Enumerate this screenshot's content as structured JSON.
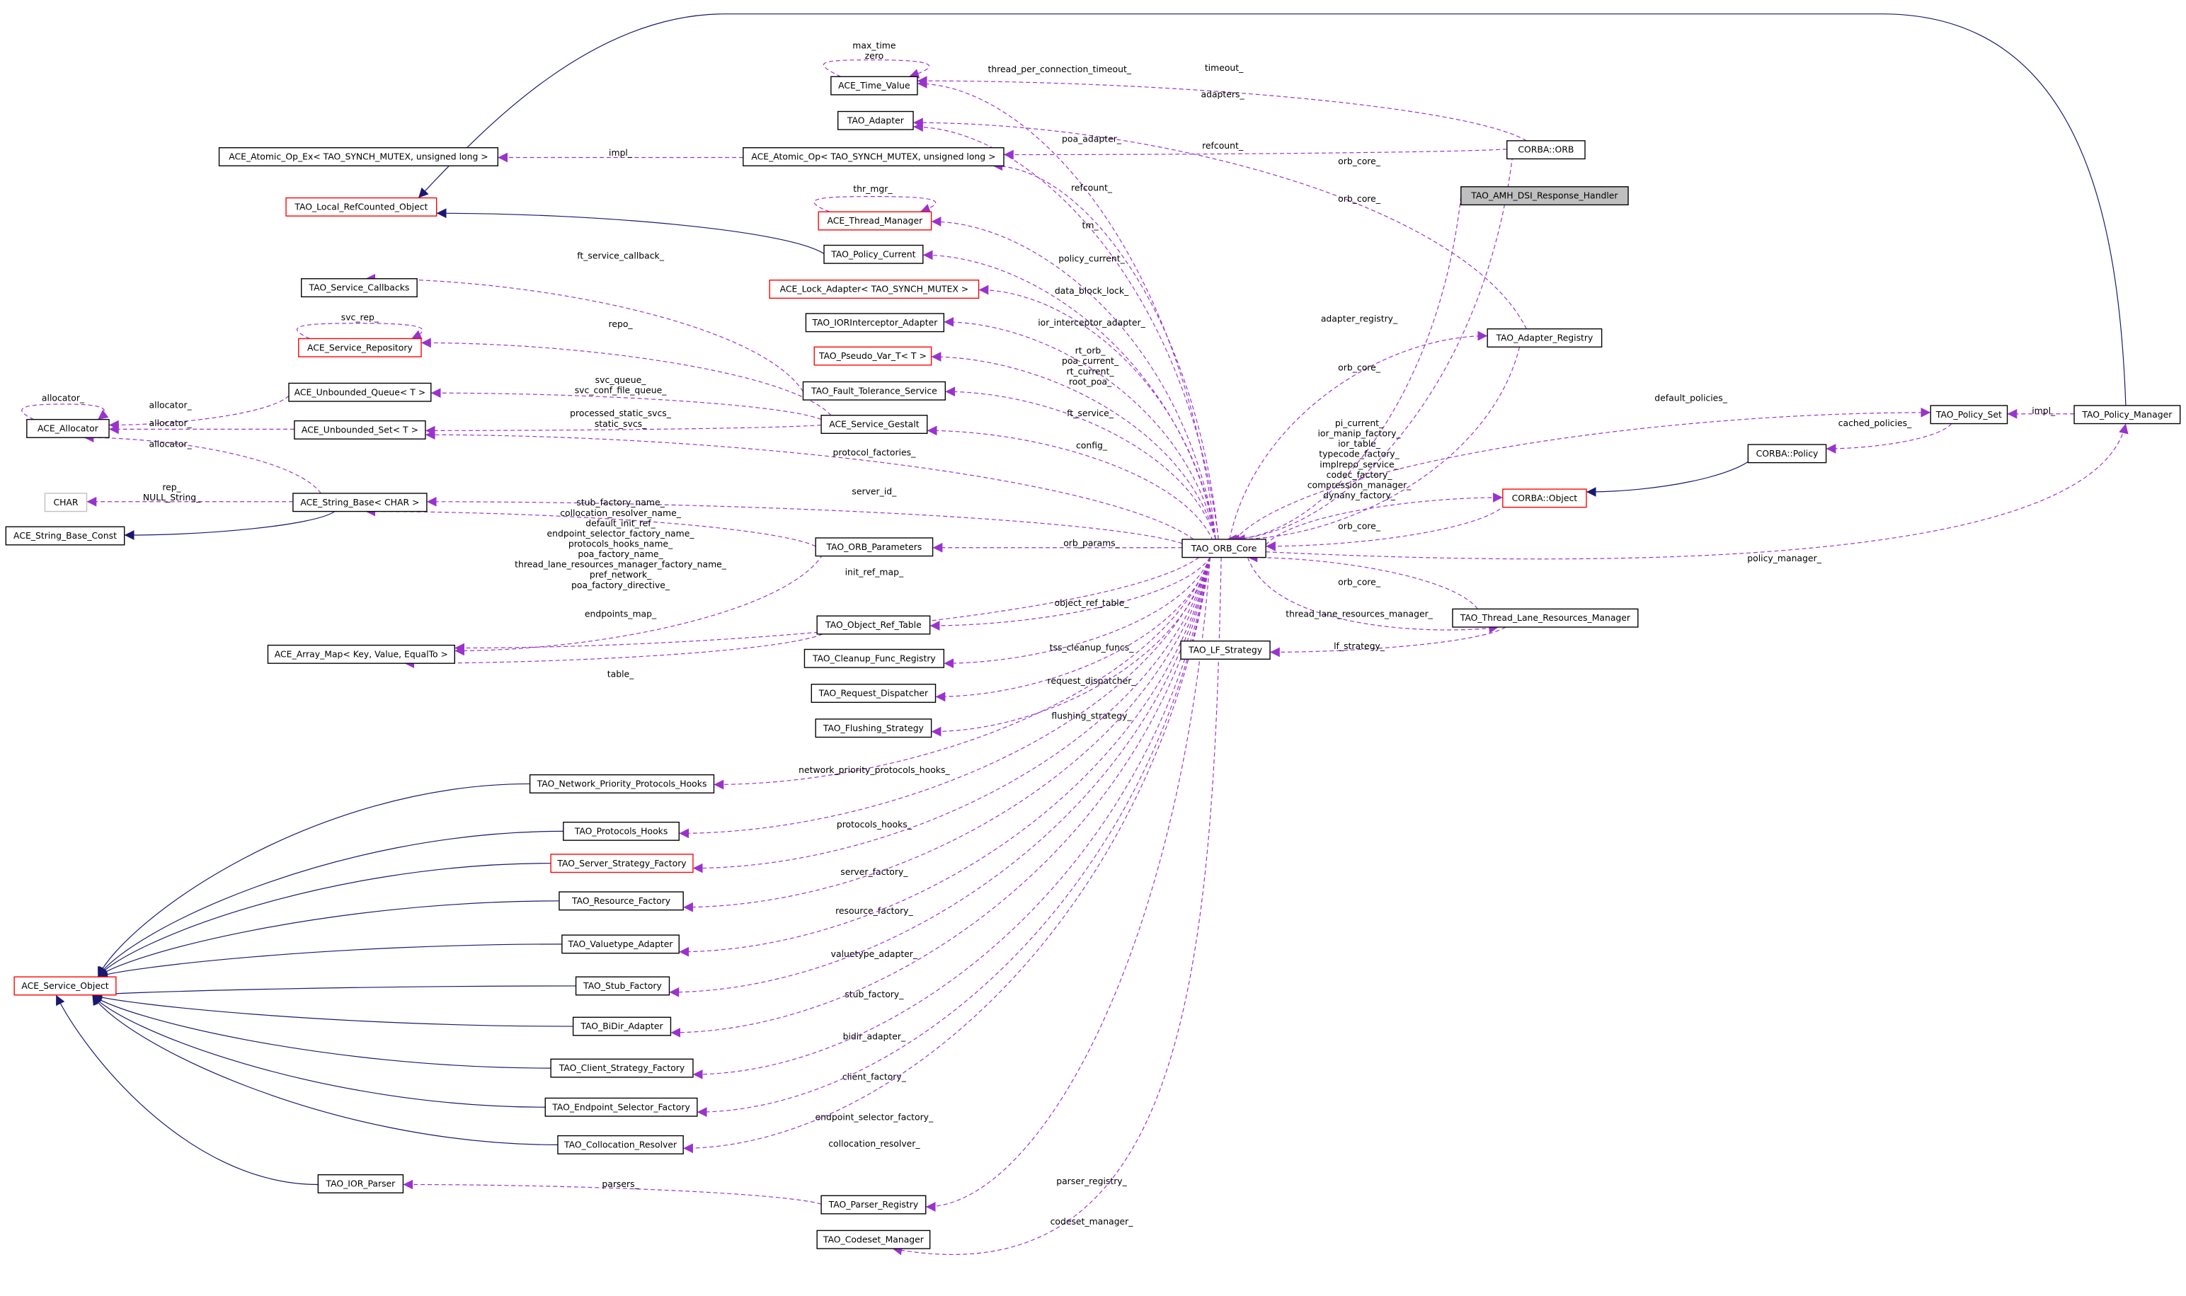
{
  "nodes": [
    {
      "label": "ACE_Time_Value"
    },
    {
      "label": "TAO_Adapter"
    },
    {
      "label": "ACE_Atomic_Op_Ex< TAO_SYNCH_MUTEX, unsigned long >"
    },
    {
      "label": "ACE_Atomic_Op< TAO_SYNCH_MUTEX, unsigned long >"
    },
    {
      "label": "CORBA::ORB"
    },
    {
      "label": "TAO_AMH_DSI_Response_Handler"
    },
    {
      "label": "TAO_Local_RefCounted_Object"
    },
    {
      "label": "ACE_Thread_Manager"
    },
    {
      "label": "TAO_Policy_Current"
    },
    {
      "label": "TAO_Service_Callbacks"
    },
    {
      "label": "ACE_Lock_Adapter< TAO_SYNCH_MUTEX >"
    },
    {
      "label": "TAO_IORInterceptor_Adapter"
    },
    {
      "label": "ACE_Service_Repository"
    },
    {
      "label": "TAO_Adapter_Registry"
    },
    {
      "label": "TAO_Pseudo_Var_T< T >"
    },
    {
      "label": "ACE_Unbounded_Queue< T >"
    },
    {
      "label": "TAO_Fault_Tolerance_Service"
    },
    {
      "label": "ACE_Allocator"
    },
    {
      "label": "ACE_Unbounded_Set< T >"
    },
    {
      "label": "ACE_Service_Gestalt"
    },
    {
      "label": "TAO_Policy_Set"
    },
    {
      "label": "TAO_Policy_Manager"
    },
    {
      "label": "CORBA::Policy"
    },
    {
      "label": "CHAR"
    },
    {
      "label": "ACE_String_Base< CHAR >"
    },
    {
      "label": "CORBA::Object"
    },
    {
      "label": "ACE_String_Base_Const"
    },
    {
      "label": "TAO_ORB_Parameters"
    },
    {
      "label": "TAO_ORB_Core"
    },
    {
      "label": "TAO_Object_Ref_Table"
    },
    {
      "label": "TAO_Thread_Lane_Resources_Manager"
    },
    {
      "label": "ACE_Array_Map< Key, Value, EqualTo >"
    },
    {
      "label": "TAO_LF_Strategy"
    },
    {
      "label": "TAO_Cleanup_Func_Registry"
    },
    {
      "label": "TAO_Request_Dispatcher"
    },
    {
      "label": "TAO_Flushing_Strategy"
    },
    {
      "label": "TAO_Network_Priority_Protocols_Hooks"
    },
    {
      "label": "TAO_Protocols_Hooks"
    },
    {
      "label": "TAO_Server_Strategy_Factory"
    },
    {
      "label": "TAO_Resource_Factory"
    },
    {
      "label": "TAO_Valuetype_Adapter"
    },
    {
      "label": "ACE_Service_Object"
    },
    {
      "label": "TAO_Stub_Factory"
    },
    {
      "label": "TAO_BiDir_Adapter"
    },
    {
      "label": "TAO_Client_Strategy_Factory"
    },
    {
      "label": "TAO_Endpoint_Selector_Factory"
    },
    {
      "label": "TAO_Collocation_Resolver"
    },
    {
      "label": "TAO_IOR_Parser"
    },
    {
      "label": "TAO_Parser_Registry"
    },
    {
      "label": "TAO_Codeset_Manager"
    }
  ],
  "edges": [
    {
      "label": [
        "max_time",
        "zero"
      ]
    },
    {
      "label": [
        "thread_per_connection_timeout_"
      ]
    },
    {
      "label": [
        "timeout_"
      ]
    },
    {
      "label": [
        "adapters_"
      ]
    },
    {
      "label": [
        "poa_adapter_"
      ]
    },
    {
      "label": [
        "impl_"
      ]
    },
    {
      "label": [
        "refcount_"
      ]
    },
    {
      "label": [
        "refcount_"
      ]
    },
    {
      "label": [
        "orb_core_"
      ]
    },
    {
      "label": [
        "orb_core_"
      ]
    },
    {
      "label": [
        "thr_mgr_"
      ]
    },
    {
      "label": [
        "tm_"
      ]
    },
    {
      "label": [
        "policy_current_"
      ]
    },
    {
      "label": [
        "ft_service_callback_"
      ]
    },
    {
      "label": [
        "data_block_lock_"
      ]
    },
    {
      "label": [
        "ior_interceptor_adapter_"
      ]
    },
    {
      "label": [
        "svc_rep_"
      ]
    },
    {
      "label": [
        "repo_"
      ]
    },
    {
      "label": [
        "adapter_registry_"
      ]
    },
    {
      "label": [
        "rt_orb_",
        "poa_current_",
        "rt_current_",
        "root_poa_"
      ]
    },
    {
      "label": [
        "svc_queue_",
        "svc_conf_file_queue_"
      ]
    },
    {
      "label": [
        "allocator_"
      ]
    },
    {
      "label": [
        "allocator_"
      ]
    },
    {
      "label": [
        "allocator_"
      ]
    },
    {
      "label": [
        "ft_service_"
      ]
    },
    {
      "label": [
        "processed_static_svcs_",
        "static_svcs_"
      ]
    },
    {
      "label": [
        "orb_core_"
      ]
    },
    {
      "label": [
        "default_policies_"
      ]
    },
    {
      "label": [
        "impl_"
      ]
    },
    {
      "label": [
        "cached_policies_"
      ]
    },
    {
      "label": [
        "allocator_"
      ]
    },
    {
      "label": [
        "config_"
      ]
    },
    {
      "label": [
        "protocol_factories_"
      ]
    },
    {
      "label": [
        "pi_current_",
        "ior_manip_factory_",
        "ior_table_",
        "typecode_factory_",
        "implrepo_service_",
        "codec_factory_",
        "compression_manager_",
        "dynany_factory_"
      ]
    },
    {
      "label": [
        "rep_",
        "NULL_String_"
      ]
    },
    {
      "label": [
        "server_id_"
      ]
    },
    {
      "label": [
        "stub_factory_name_",
        "collocation_resolver_name_",
        "default_init_ref_",
        "endpoint_selector_factory_name_",
        "protocols_hooks_name_",
        "poa_factory_name_",
        "thread_lane_resources_manager_factory_name_",
        "pref_network_",
        "poa_factory_directive_"
      ]
    },
    {
      "label": [
        "orb_core_"
      ]
    },
    {
      "label": [
        "orb_params_"
      ]
    },
    {
      "label": [
        "policy_manager_"
      ]
    },
    {
      "label": [
        "init_ref_map_"
      ]
    },
    {
      "label": [
        "endpoints_map_"
      ]
    },
    {
      "label": [
        "table_"
      ]
    },
    {
      "label": [
        "orb_core_"
      ]
    },
    {
      "label": [
        "object_ref_table_"
      ]
    },
    {
      "label": [
        "thread_lane_resources_manager_"
      ]
    },
    {
      "label": [
        "lf_strategy_"
      ]
    },
    {
      "label": [
        "tss_cleanup_funcs_"
      ]
    },
    {
      "label": [
        "request_dispatcher_"
      ]
    },
    {
      "label": [
        "flushing_strategy_"
      ]
    },
    {
      "label": [
        "network_priority_protocols_hooks_"
      ]
    },
    {
      "label": [
        "protocols_hooks_"
      ]
    },
    {
      "label": [
        "server_factory_"
      ]
    },
    {
      "label": [
        "resource_factory_"
      ]
    },
    {
      "label": [
        "valuetype_adapter_"
      ]
    },
    {
      "label": [
        "stub_factory_"
      ]
    },
    {
      "label": [
        "bidir_adapter_"
      ]
    },
    {
      "label": [
        "client_factory_"
      ]
    },
    {
      "label": [
        "endpoint_selector_factory_"
      ]
    },
    {
      "label": [
        "collocation_resolver_"
      ]
    },
    {
      "label": [
        "parsers_"
      ]
    },
    {
      "label": [
        "parser_registry_"
      ]
    },
    {
      "label": [
        "codeset_manager_"
      ]
    }
  ]
}
